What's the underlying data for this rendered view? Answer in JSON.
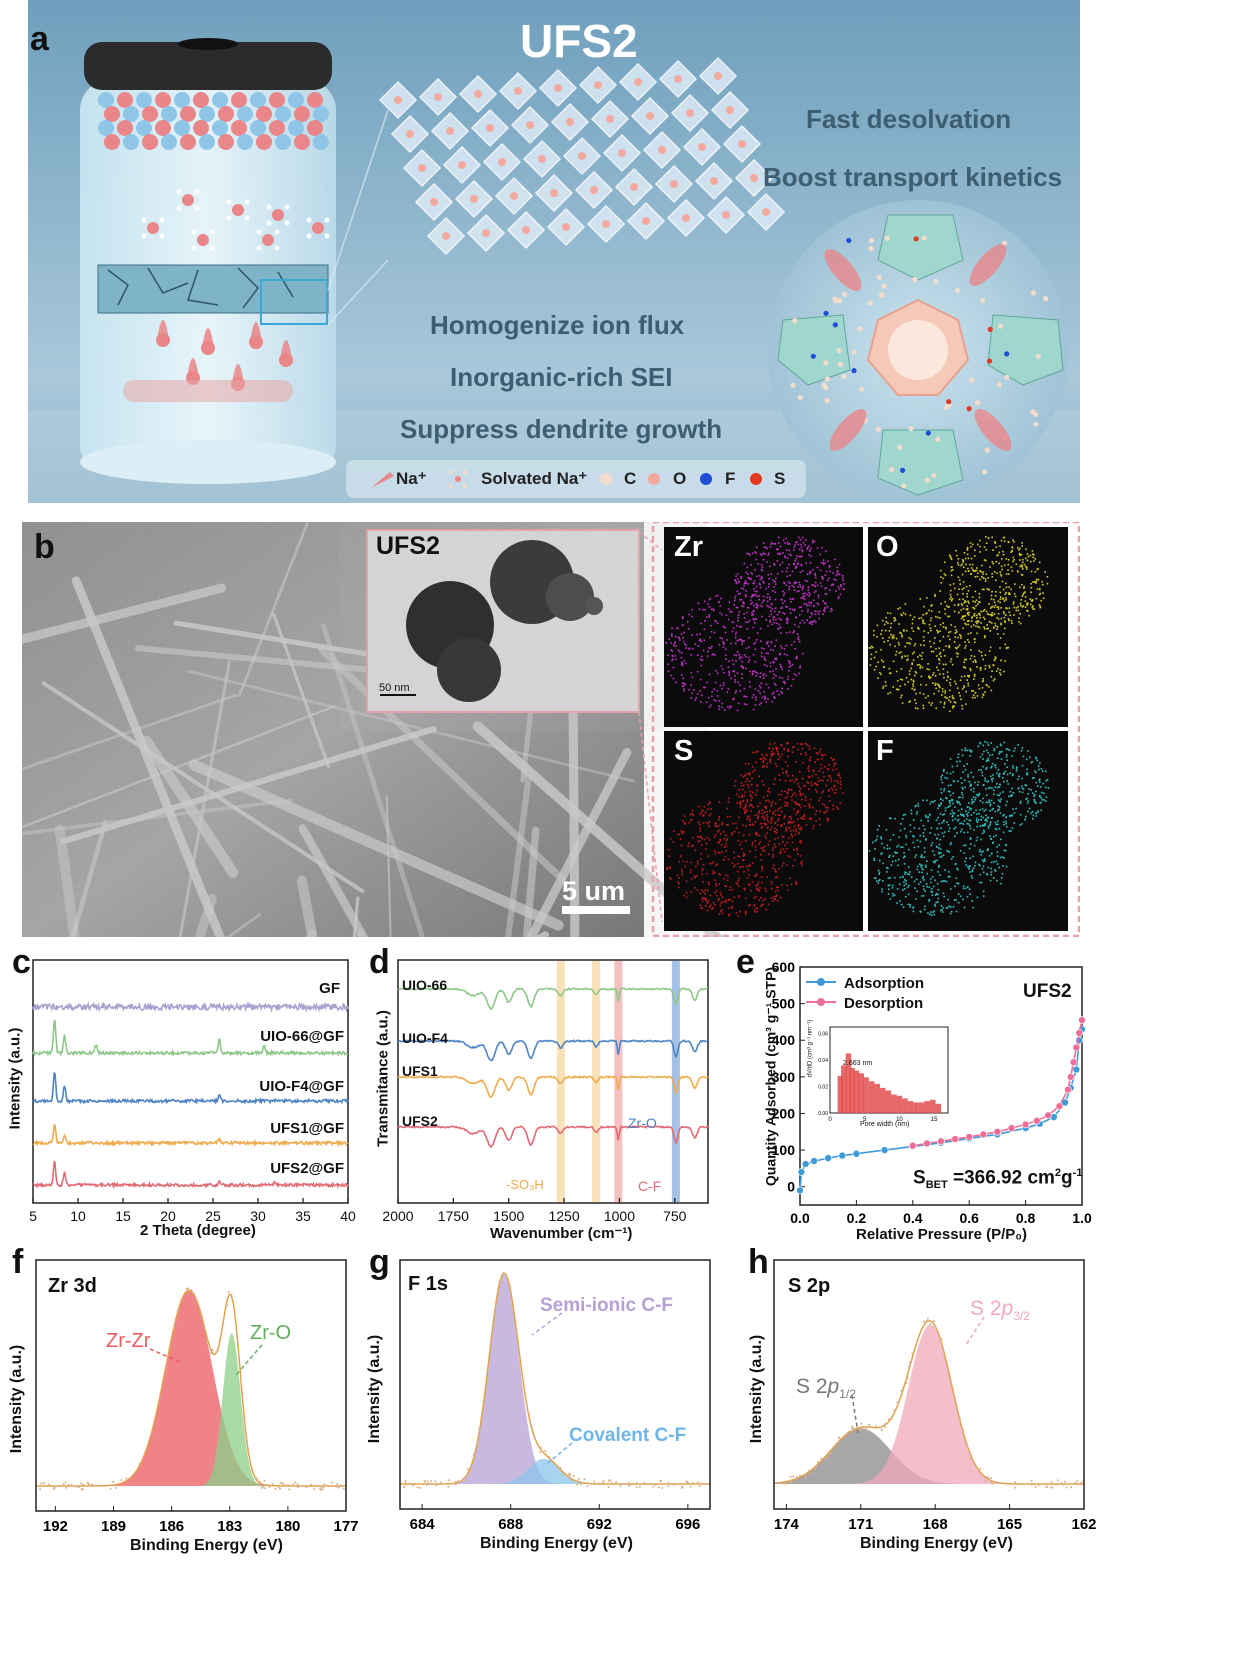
{
  "panel_a": {
    "label": "a",
    "title": "UFS2",
    "benefits_right": [
      "Fast desolvation",
      "Boost transport kinetics"
    ],
    "benefits_center": [
      "Homogenize ion flux",
      "Inorganic-rich SEI",
      "Suppress dendrite growth"
    ],
    "legend": {
      "na": "Na⁺",
      "solvated": "Solvated Na⁺",
      "c": "C",
      "o": "O",
      "f": "F",
      "s": "S"
    },
    "colors": {
      "bg": "#8fb4cc",
      "na": "#e9868a",
      "c": "#f3dccc",
      "o": "#f2a9a0",
      "f": "#1e4fd6",
      "s": "#e23b22"
    }
  },
  "panel_b": {
    "label": "b",
    "scale_bar": "5 um",
    "inset_title": "UFS2",
    "inset_scale": "50 nm",
    "maps": [
      {
        "element": "Zr",
        "color": "#c233c9"
      },
      {
        "element": "O",
        "color": "#d3cc26"
      },
      {
        "element": "S",
        "color": "#c81e22"
      },
      {
        "element": "F",
        "color": "#2fc2c0"
      }
    ]
  },
  "panel_c": {
    "label": "c",
    "chart_data": {
      "type": "line",
      "xlabel": "2 Theta (degree)",
      "ylabel": "Intensity (a.u.)",
      "xlim": [
        5,
        40
      ],
      "xticks": [
        5,
        10,
        15,
        20,
        25,
        30,
        35,
        40
      ],
      "series": [
        {
          "name": "GF",
          "color": "#a7a3cf",
          "peaks": []
        },
        {
          "name": "UIO-66@GF",
          "color": "#8fc78a",
          "peaks": [
            [
              7.4,
              1.0
            ],
            [
              8.5,
              0.5
            ],
            [
              12.0,
              0.25
            ],
            [
              25.7,
              0.4
            ],
            [
              30.7,
              0.2
            ]
          ]
        },
        {
          "name": "UIO-F4@GF",
          "color": "#4e84c4",
          "peaks": [
            [
              7.4,
              0.9
            ],
            [
              8.5,
              0.45
            ],
            [
              25.7,
              0.15
            ]
          ]
        },
        {
          "name": "UFS1@GF",
          "color": "#efab4e",
          "peaks": [
            [
              7.4,
              0.55
            ],
            [
              8.5,
              0.25
            ],
            [
              25.7,
              0.12
            ]
          ]
        },
        {
          "name": "UFS2@GF",
          "color": "#e06b75",
          "peaks": [
            [
              7.4,
              0.7
            ],
            [
              8.5,
              0.35
            ],
            [
              25.7,
              0.12
            ],
            [
              31.9,
              0.1
            ]
          ]
        }
      ]
    }
  },
  "panel_d": {
    "label": "d",
    "chart_data": {
      "type": "line",
      "xlabel": "Wavenumber (cm⁻¹)",
      "ylabel": "Transmitance (a.u.)",
      "xlim": [
        2000,
        600
      ],
      "xticks": [
        2000,
        1750,
        1500,
        1250,
        1000,
        750
      ],
      "series": [
        {
          "name": "UIO-66",
          "color": "#8fc78a"
        },
        {
          "name": "UIO-F4",
          "color": "#4e84c4"
        },
        {
          "name": "UFS1",
          "color": "#efab4e"
        },
        {
          "name": "UFS2",
          "color": "#e06b75"
        }
      ],
      "annotations": [
        "Zr-O",
        "-SO₃H",
        "C-F"
      ],
      "bands": [
        {
          "center": 1265,
          "color": "#f7d9a6"
        },
        {
          "center": 1105,
          "color": "#f7d9a6"
        },
        {
          "center": 1005,
          "color": "#f2b0b0"
        },
        {
          "center": 745,
          "color": "#8fb3e0"
        }
      ]
    }
  },
  "panel_e": {
    "label": "e",
    "sample": "UFS2",
    "bet": "S",
    "bet_sub": "BET",
    "bet_value": " =366.92 cm",
    "bet_unit_sup": "2",
    "bet_unit_tail": "g",
    "bet_unit_sup2": "-1",
    "chart_data": {
      "type": "line",
      "xlabel": "Relative Pressure (P/P₀)",
      "ylabel": "Quantity Adsorbed (cm³ g⁻¹ STP)",
      "xlim": [
        0,
        1.0
      ],
      "ylim": [
        -50,
        600
      ],
      "xticks": [
        "0.0",
        "0.2",
        "0.4",
        "0.6",
        "0.8",
        "1.0"
      ],
      "yticks": [
        0,
        100,
        200,
        300,
        400,
        500,
        600
      ],
      "series": [
        {
          "name": "Adsorption",
          "color": "#3f9bd8",
          "x": [
            0.0,
            0.005,
            0.02,
            0.05,
            0.1,
            0.15,
            0.2,
            0.3,
            0.4,
            0.5,
            0.6,
            0.7,
            0.8,
            0.85,
            0.9,
            0.94,
            0.96,
            0.98,
            0.99,
            1.0
          ],
          "y": [
            -10,
            40,
            62,
            70,
            78,
            85,
            90,
            100,
            110,
            120,
            132,
            143,
            160,
            172,
            190,
            230,
            270,
            320,
            400,
            430
          ]
        },
        {
          "name": "Desorption",
          "color": "#ee6e98",
          "x": [
            1.0,
            0.99,
            0.98,
            0.97,
            0.96,
            0.95,
            0.92,
            0.88,
            0.84,
            0.8,
            0.75,
            0.7,
            0.65,
            0.6,
            0.55,
            0.5,
            0.45,
            0.4
          ],
          "y": [
            455,
            420,
            380,
            340,
            300,
            265,
            220,
            195,
            180,
            170,
            160,
            150,
            143,
            136,
            130,
            124,
            118,
            112
          ]
        }
      ],
      "inset": {
        "type": "bar",
        "peak_label": "2.663 nm",
        "xlabel": "Pore width (nm)",
        "ylabel": "dV/dD (cm³ g⁻¹ nm⁻¹)",
        "xticks": [
          0,
          5,
          10,
          15
        ],
        "yticks": [
          "0.00",
          "0.02",
          "0.04",
          "0.06"
        ],
        "ylim": [
          0,
          0.065
        ],
        "x": [
          1.5,
          2.0,
          2.663,
          3.2,
          3.8,
          4.5,
          5.2,
          6.0,
          6.8,
          7.6,
          8.4,
          9.2,
          10.0,
          10.8,
          11.6,
          12.4,
          13.2,
          14.0,
          14.8,
          15.6
        ],
        "values": [
          0.028,
          0.036,
          0.045,
          0.034,
          0.032,
          0.03,
          0.027,
          0.024,
          0.022,
          0.019,
          0.017,
          0.014,
          0.013,
          0.011,
          0.009,
          0.008,
          0.008,
          0.009,
          0.01,
          0.007
        ]
      }
    }
  },
  "panel_f": {
    "label": "f",
    "title": "Zr 3d",
    "chart_data": {
      "type": "area",
      "xlabel": "Binding Energy (eV)",
      "ylabel": "Intensity (a.u.)",
      "xlim": [
        192,
        177
      ],
      "xticks": [
        192,
        189,
        186,
        183,
        180,
        177
      ],
      "peaks": [
        {
          "name": "Zr-Zr",
          "center": 185.1,
          "height": 1.0,
          "width": 1.7,
          "color": "#ea5a5f"
        },
        {
          "name": "Zr-O",
          "center": 182.9,
          "height": 0.78,
          "width": 0.65,
          "color": "#8dcf88"
        }
      ]
    }
  },
  "panel_g": {
    "label": "g",
    "title": "F 1s",
    "chart_data": {
      "type": "area",
      "xlabel": "Binding Energy (eV)",
      "ylabel": "Intensity (a.u.)",
      "xlim": [
        683,
        697
      ],
      "xticks": [
        684,
        688,
        692,
        696
      ],
      "peaks": [
        {
          "name": "Semi-ionic C-F",
          "center": 687.7,
          "height": 1.0,
          "width": 0.95,
          "color": "#b7a0d4"
        },
        {
          "name": "Covalent C-F",
          "center": 689.5,
          "height": 0.12,
          "width": 1.0,
          "color": "#8cc6ec"
        }
      ]
    }
  },
  "panel_h": {
    "label": "h",
    "title": "S 2p",
    "chart_data": {
      "type": "area",
      "xlabel": "Binding Energy (eV)",
      "ylabel": "Intensity (a.u.)",
      "xlim": [
        174.5,
        162
      ],
      "xticks": [
        174,
        171,
        168,
        165,
        162
      ],
      "peaks": [
        {
          "name": "S 2p 1/2",
          "center": 171.0,
          "height": 0.35,
          "width": 1.7,
          "color": "#8a8a8a"
        },
        {
          "name": "S 2p 3/2",
          "center": 168.2,
          "height": 1.0,
          "width": 1.25,
          "color": "#f0a8bc"
        }
      ],
      "labels": {
        "main": "S 2",
        "italic": "p",
        "sub_half": "1/2",
        "sub_threehalf": "3/2"
      }
    }
  }
}
